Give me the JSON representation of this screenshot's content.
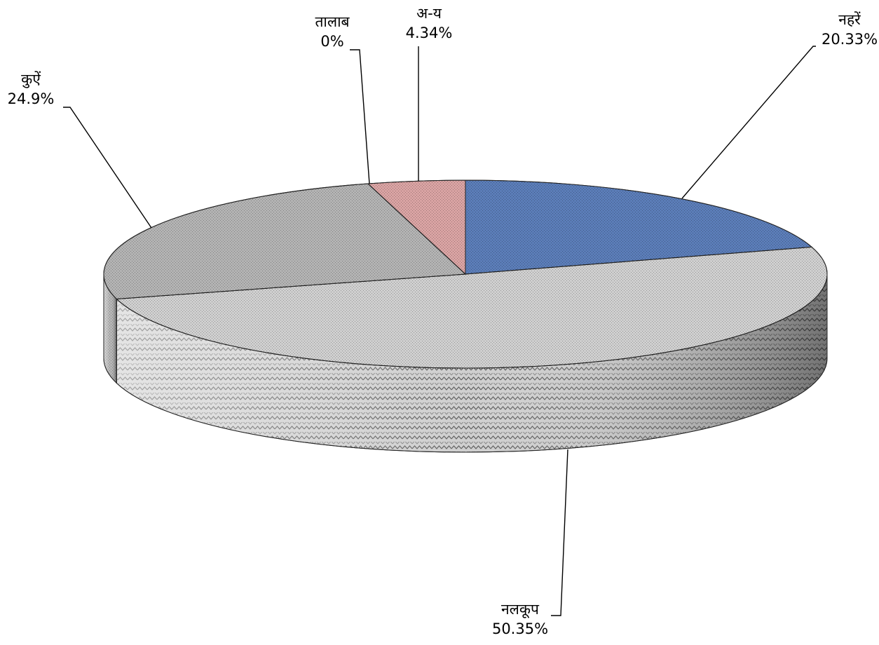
{
  "chart_data": {
    "type": "pie",
    "style": "3d",
    "slices": [
      {
        "label": "नहरें",
        "value": 20.33,
        "value_label": "20.33%",
        "color": "#5b7db8",
        "pattern": "fine-texture"
      },
      {
        "label": "नलकूप",
        "value": 50.35,
        "value_label": "50.35%",
        "color": "#cfcfcf",
        "pattern": "zigzag"
      },
      {
        "label": "कुऐं",
        "value": 24.9,
        "value_label": "24.9%",
        "color": "#b3b3b3",
        "pattern": "fine-texture"
      },
      {
        "label": "तालाब",
        "value": 0,
        "value_label": "0%",
        "color": "#999999",
        "pattern": "none"
      },
      {
        "label": "अ-य",
        "value": 4.34,
        "value_label": "4.34%",
        "color": "#d9a3a3",
        "pattern": "fine-texture"
      }
    ],
    "legend": "none"
  }
}
